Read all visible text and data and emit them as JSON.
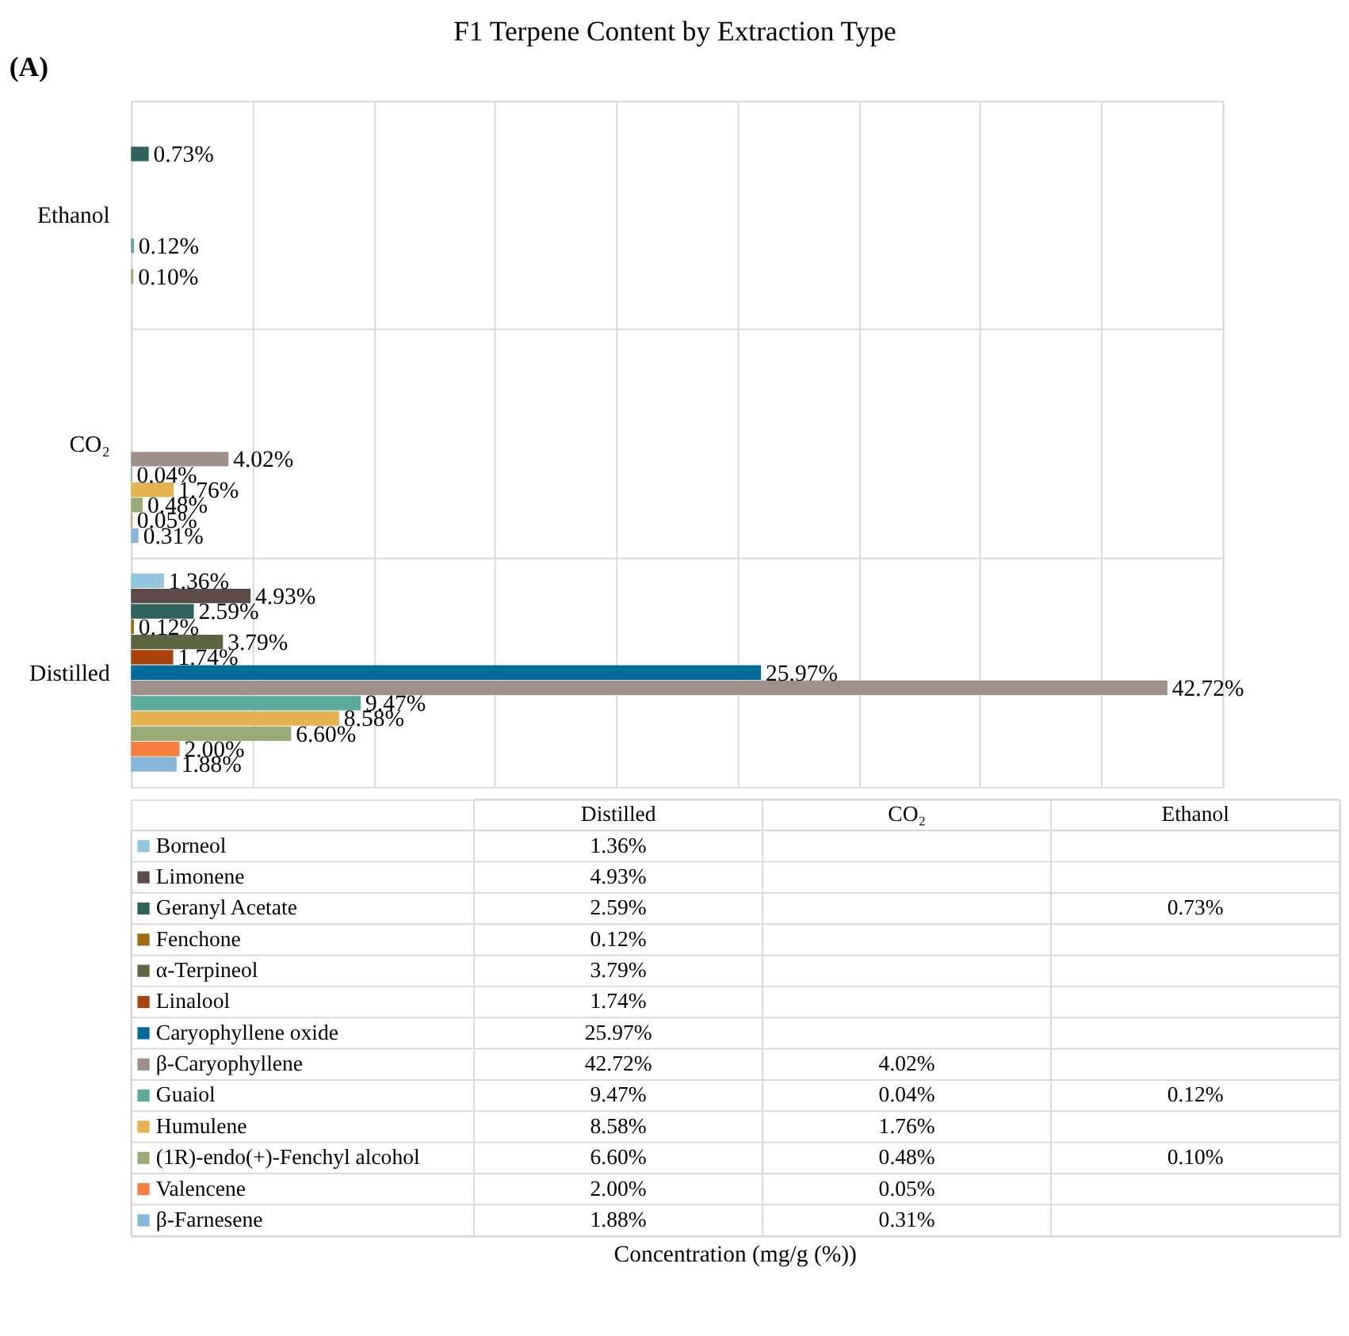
{
  "chart_data": {
    "type": "bar",
    "orientation": "horizontal",
    "title": "F1 Terpene Content by Extraction Type",
    "annotations": [
      "(A)",
      "Concentration (mg/g (%))"
    ],
    "categories": [
      "Ethanol",
      "CO₂",
      "Distilled"
    ],
    "xlim": [
      0,
      45
    ],
    "xticks": [
      {
        "value": 0,
        "label": null
      },
      {
        "value": 5,
        "label": null
      },
      {
        "value": 10,
        "label": null
      },
      {
        "value": 15,
        "label": null
      },
      {
        "value": 20,
        "label": null
      },
      {
        "value": 25,
        "label": null
      },
      {
        "value": 30,
        "label": null
      },
      {
        "value": 35,
        "label": null
      },
      {
        "value": 40,
        "label": null
      },
      {
        "value": 45,
        "label": null
      }
    ],
    "tick_labels": "y",
    "grid": true,
    "legend": "bottom",
    "series": [
      {
        "name": "Borneol",
        "color": "#92c5de",
        "values": [
          null,
          null,
          1.36
        ],
        "value_labels": [
          null,
          null,
          "1.36%"
        ]
      },
      {
        "name": "Limonene",
        "color": "#5b4b4b",
        "values": [
          null,
          null,
          4.93
        ],
        "value_labels": [
          null,
          null,
          "4.93%"
        ]
      },
      {
        "name": "Geranyl Acetate",
        "color": "#2f625c",
        "values": [
          0.73,
          null,
          2.59
        ],
        "value_labels": [
          "0.73%",
          null,
          "2.59%"
        ]
      },
      {
        "name": "Fenchone",
        "color": "#9e6b12",
        "values": [
          null,
          null,
          0.12
        ],
        "value_labels": [
          null,
          null,
          "0.12%"
        ]
      },
      {
        "name": "α-Terpineol",
        "color": "#5c6640",
        "values": [
          null,
          null,
          3.79
        ],
        "value_labels": [
          null,
          null,
          "3.79%"
        ]
      },
      {
        "name": "Linalool",
        "color": "#a8430f",
        "values": [
          null,
          null,
          1.74
        ],
        "value_labels": [
          null,
          null,
          "1.74%"
        ]
      },
      {
        "name": "Caryophyllene oxide",
        "color": "#006b98",
        "values": [
          null,
          null,
          25.97
        ],
        "value_labels": [
          null,
          null,
          "25.97%"
        ]
      },
      {
        "name": "β-Caryophyllene",
        "color": "#9e8f8b",
        "values": [
          null,
          4.02,
          42.72
        ],
        "value_labels": [
          null,
          "4.02%",
          "42.72%"
        ]
      },
      {
        "name": "Guaiol",
        "color": "#5aab9c",
        "values": [
          0.12,
          0.04,
          9.47
        ],
        "value_labels": [
          "0.12%",
          "0.04%",
          "9.47%"
        ]
      },
      {
        "name": "Humulene",
        "color": "#e6b24f",
        "values": [
          null,
          1.76,
          8.58
        ],
        "value_labels": [
          null,
          "1.76%",
          "8.58%"
        ]
      },
      {
        "name": "(1R)-endo(+)-Fenchyl alcohol",
        "color": "#9bab77",
        "values": [
          0.1,
          0.48,
          6.6
        ],
        "value_labels": [
          "0.10%",
          "0.48%",
          "6.60%"
        ]
      },
      {
        "name": "Valencene",
        "color": "#f47f3e",
        "values": [
          null,
          0.05,
          2.0
        ],
        "value_labels": [
          null,
          "0.05%",
          "2.00%"
        ]
      },
      {
        "name": "β-Farnesene",
        "color": "#86b7da",
        "values": [
          null,
          0.31,
          1.88
        ],
        "value_labels": [
          null,
          "0.31%",
          "1.88%"
        ]
      }
    ]
  }
}
